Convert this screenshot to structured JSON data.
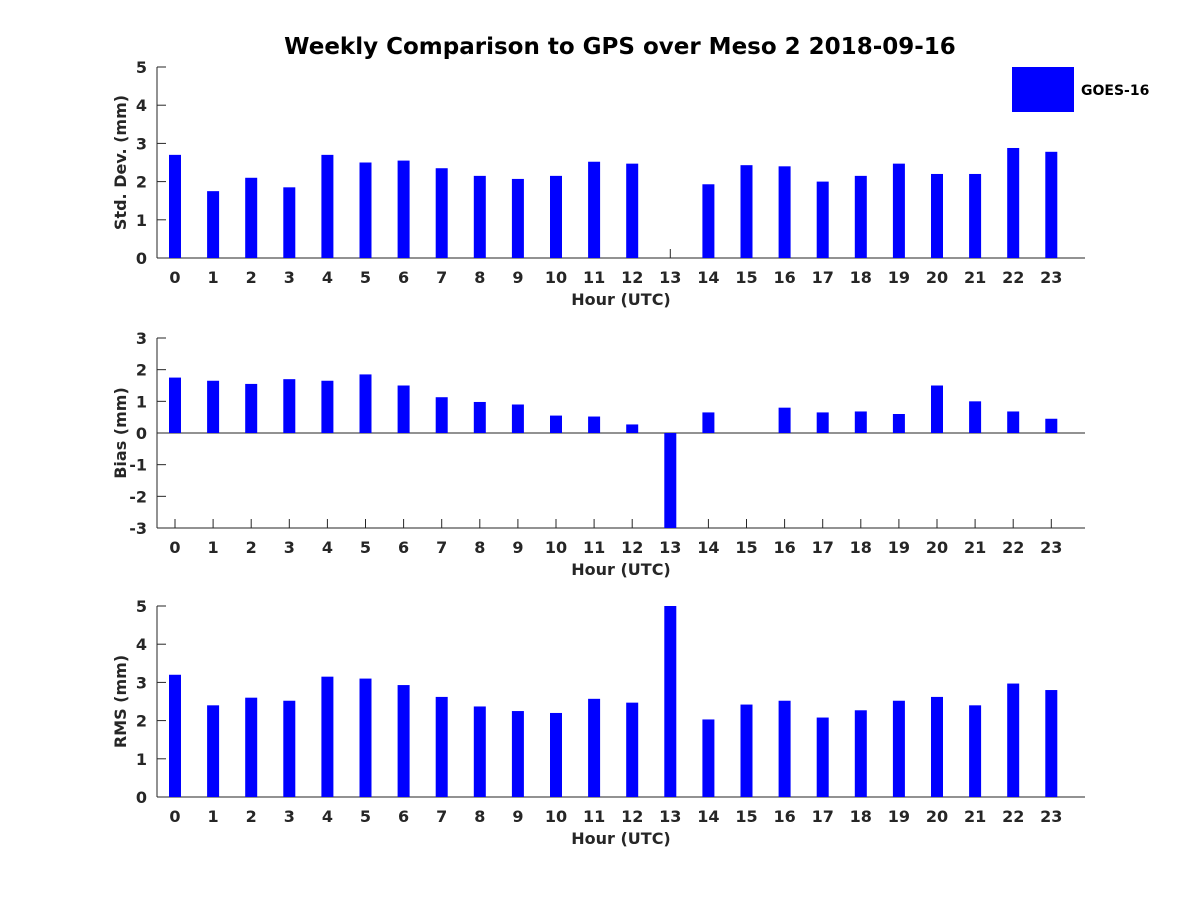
{
  "chart_data": [
    {
      "type": "bar",
      "title": "Weekly Comparison to GPS over Meso 2 2018-09-16",
      "xlabel": "Hour (UTC)",
      "ylabel": "Std. Dev. (mm)",
      "categories": [
        "0",
        "1",
        "2",
        "3",
        "4",
        "5",
        "6",
        "7",
        "8",
        "9",
        "10",
        "11",
        "12",
        "13",
        "14",
        "15",
        "16",
        "17",
        "18",
        "19",
        "20",
        "21",
        "22",
        "23"
      ],
      "ylim": [
        0,
        5
      ],
      "yticks": [
        0,
        1,
        2,
        3,
        4,
        5
      ],
      "grid": false,
      "legend": "top-right",
      "series": [
        {
          "name": "GOES-16",
          "color": "#0000ff",
          "values": [
            2.7,
            1.75,
            2.1,
            1.85,
            2.7,
            2.5,
            2.55,
            2.35,
            2.15,
            2.07,
            2.15,
            2.52,
            2.47,
            0,
            1.93,
            2.43,
            2.4,
            2.0,
            2.15,
            2.47,
            2.2,
            2.2,
            2.88,
            2.78
          ]
        }
      ]
    },
    {
      "type": "bar",
      "xlabel": "Hour (UTC)",
      "ylabel": "Bias (mm)",
      "categories": [
        "0",
        "1",
        "2",
        "3",
        "4",
        "5",
        "6",
        "7",
        "8",
        "9",
        "10",
        "11",
        "12",
        "13",
        "14",
        "15",
        "16",
        "17",
        "18",
        "19",
        "20",
        "21",
        "22",
        "23"
      ],
      "ylim": [
        -3,
        3
      ],
      "yticks": [
        -3,
        -2,
        -1,
        0,
        1,
        2,
        3
      ],
      "grid": false,
      "series": [
        {
          "name": "GOES-16",
          "color": "#0000ff",
          "values": [
            1.75,
            1.65,
            1.55,
            1.7,
            1.65,
            1.85,
            1.5,
            1.13,
            0.98,
            0.9,
            0.55,
            0.52,
            0.27,
            -3.0,
            0.65,
            0,
            0.8,
            0.65,
            0.68,
            0.6,
            1.5,
            1.0,
            0.68,
            0.45
          ]
        }
      ]
    },
    {
      "type": "bar",
      "xlabel": "Hour (UTC)",
      "ylabel": "RMS (mm)",
      "categories": [
        "0",
        "1",
        "2",
        "3",
        "4",
        "5",
        "6",
        "7",
        "8",
        "9",
        "10",
        "11",
        "12",
        "13",
        "14",
        "15",
        "16",
        "17",
        "18",
        "19",
        "20",
        "21",
        "22",
        "23"
      ],
      "ylim": [
        0,
        5
      ],
      "yticks": [
        0,
        1,
        2,
        3,
        4,
        5
      ],
      "grid": false,
      "series": [
        {
          "name": "GOES-16",
          "color": "#0000ff",
          "values": [
            3.2,
            2.4,
            2.6,
            2.52,
            3.15,
            3.1,
            2.93,
            2.62,
            2.37,
            2.25,
            2.2,
            2.57,
            2.47,
            5.0,
            2.03,
            2.42,
            2.52,
            2.08,
            2.27,
            2.52,
            2.62,
            2.4,
            2.97,
            2.8
          ]
        }
      ]
    }
  ]
}
